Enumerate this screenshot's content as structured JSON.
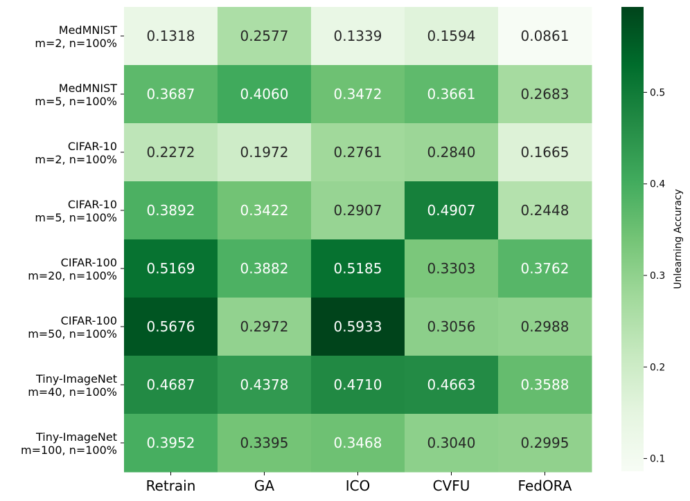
{
  "chart_data": {
    "type": "heatmap",
    "colormap": "Greens",
    "rows": [
      [
        "MedMNIST",
        "m=2, n=100%"
      ],
      [
        "MedMNIST",
        "m=5, n=100%"
      ],
      [
        "CIFAR-10",
        "m=2, n=100%"
      ],
      [
        "CIFAR-10",
        "m=5, n=100%"
      ],
      [
        "CIFAR-100",
        "m=20, n=100%"
      ],
      [
        "CIFAR-100",
        "m=50, n=100%"
      ],
      [
        "Tiny-ImageNet",
        "m=40, n=100%"
      ],
      [
        "Tiny-ImageNet",
        "m=100, n=100%"
      ]
    ],
    "columns": [
      "Retrain",
      "GA",
      "ICO",
      "CVFU",
      "FedORA"
    ],
    "values": [
      [
        0.1318,
        0.2577,
        0.1339,
        0.1594,
        0.0861
      ],
      [
        0.3687,
        0.406,
        0.3472,
        0.3661,
        0.2683
      ],
      [
        0.2272,
        0.1972,
        0.2761,
        0.284,
        0.1665
      ],
      [
        0.3892,
        0.3422,
        0.2907,
        0.4907,
        0.2448
      ],
      [
        0.5169,
        0.3882,
        0.5185,
        0.3303,
        0.3762
      ],
      [
        0.5676,
        0.2972,
        0.5933,
        0.3056,
        0.2988
      ],
      [
        0.4687,
        0.4378,
        0.471,
        0.4663,
        0.3588
      ],
      [
        0.3952,
        0.3395,
        0.3468,
        0.304,
        0.2995
      ]
    ],
    "value_labels": [
      [
        "0.1318",
        "0.2577",
        "0.1339",
        "0.1594",
        "0.0861"
      ],
      [
        "0.3687",
        "0.4060",
        "0.3472",
        "0.3661",
        "0.2683"
      ],
      [
        "0.2272",
        "0.1972",
        "0.2761",
        "0.2840",
        "0.1665"
      ],
      [
        "0.3892",
        "0.3422",
        "0.2907",
        "0.4907",
        "0.2448"
      ],
      [
        "0.5169",
        "0.3882",
        "0.5185",
        "0.3303",
        "0.3762"
      ],
      [
        "0.5676",
        "0.2972",
        "0.5933",
        "0.3056",
        "0.2988"
      ],
      [
        "0.4687",
        "0.4378",
        "0.4710",
        "0.4663",
        "0.3588"
      ],
      [
        "0.3952",
        "0.3395",
        "0.3468",
        "0.3040",
        "0.2995"
      ]
    ],
    "colorbar": {
      "label": "Unlearning Accuracy",
      "range": [
        0.0861,
        0.5933
      ],
      "ticks": [
        0.1,
        0.2,
        0.3,
        0.4,
        0.5
      ],
      "tick_labels": [
        "0.1",
        "0.2",
        "0.3",
        "0.4",
        "0.5"
      ]
    }
  }
}
